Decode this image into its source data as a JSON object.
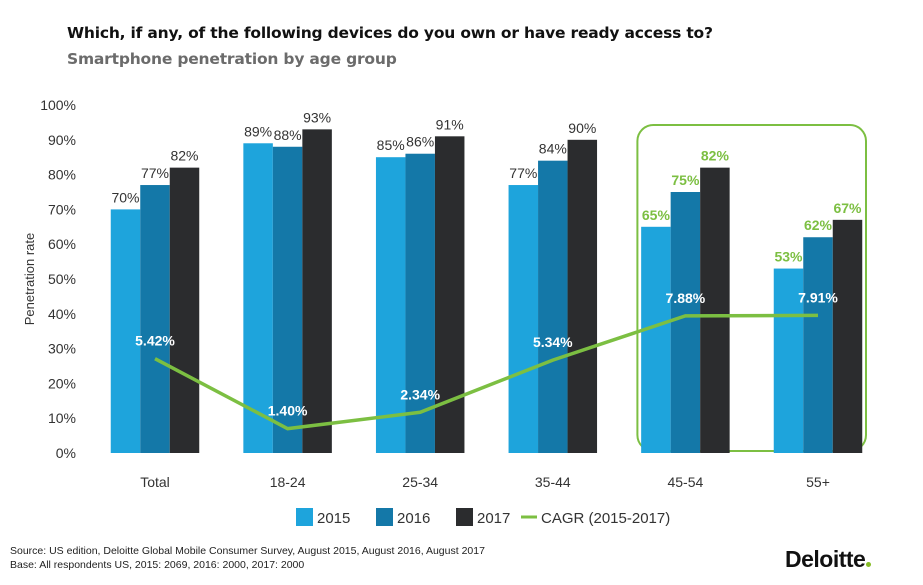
{
  "title": "Which, if any, of the following devices do you own or have ready access to?",
  "subtitle": "Smartphone penetration by age group",
  "chart_data": {
    "type": "bar",
    "ylabel": "Penetration rate",
    "ylim": [
      0,
      100
    ],
    "yticks": [
      "0%",
      "10%",
      "20%",
      "30%",
      "40%",
      "50%",
      "60%",
      "70%",
      "80%",
      "90%",
      "100%"
    ],
    "grid": false,
    "legend_position": "bottom",
    "categories": [
      "Total",
      "18-24",
      "25-34",
      "35-44",
      "45-54",
      "55+"
    ],
    "series": [
      {
        "name": "2015",
        "values": [
          70,
          89,
          85,
          77,
          65,
          53
        ],
        "labels": [
          "70%",
          "89%",
          "85%",
          "77%",
          "65%",
          "53%"
        ],
        "color": "#1ea4dc"
      },
      {
        "name": "2016",
        "values": [
          77,
          88,
          86,
          84,
          75,
          62
        ],
        "labels": [
          "77%",
          "88%",
          "86%",
          "84%",
          "75%",
          "62%"
        ],
        "color": "#1478a8"
      },
      {
        "name": "2017",
        "values": [
          82,
          93,
          91,
          90,
          82,
          67
        ],
        "labels": [
          "82%",
          "93%",
          "91%",
          "90%",
          "82%",
          "67%"
        ],
        "color": "#2b2c2e"
      }
    ],
    "line_series": {
      "name": "CAGR (2015-2017)",
      "type": "line",
      "secondary_axis_range": [
        0,
        20
      ],
      "values": [
        5.42,
        1.4,
        2.34,
        5.34,
        7.88,
        7.91
      ],
      "labels": [
        "5.42%",
        "1.40%",
        "2.34%",
        "5.34%",
        "7.88%",
        "7.91%"
      ],
      "color": "#7cbf42"
    },
    "highlighted_categories": [
      "45-54",
      "55+"
    ],
    "highlight_color": "#7cbf42"
  },
  "footer": {
    "source": "Source: US edition, Deloitte Global Mobile Consumer Survey, August 2015, August 2016, August 2017",
    "base": "Base: All respondents US, 2015: 2069, 2016: 2000, 2017: 2000",
    "logo": "Deloitte",
    "logo_dot_color": "#86bc25"
  }
}
